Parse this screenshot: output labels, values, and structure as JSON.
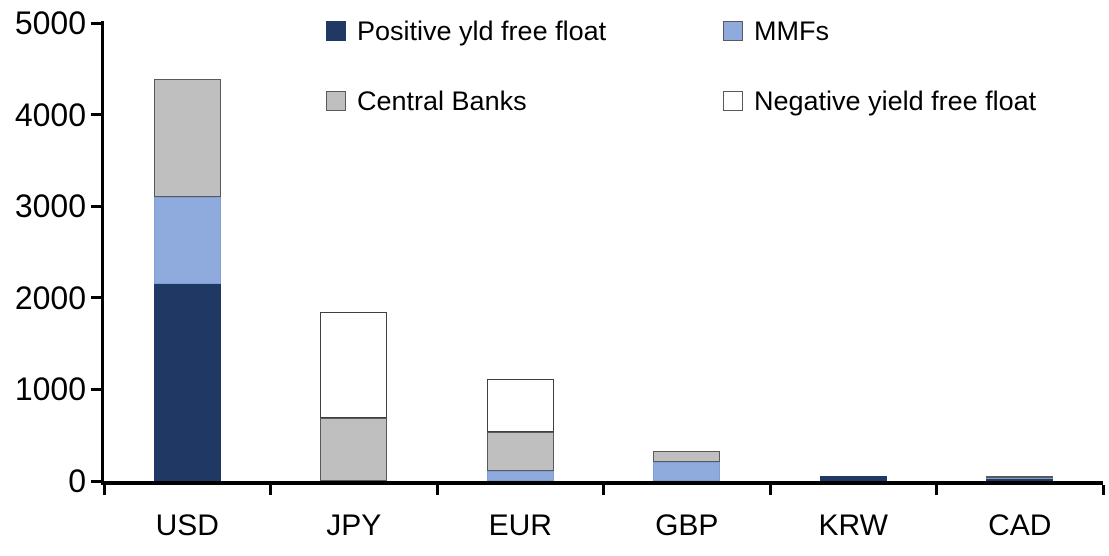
{
  "chart_data": {
    "type": "bar",
    "subtype": "stacked",
    "title": "",
    "xlabel": "",
    "ylabel": "",
    "categories": [
      "USD",
      "JPY",
      "EUR",
      "GBP",
      "KRW",
      "CAD"
    ],
    "series": [
      {
        "name": "Positive yld free float",
        "color": "#1F3864",
        "border_color": "#1F3864",
        "values": [
          2150,
          0,
          0,
          0,
          50,
          20
        ]
      },
      {
        "name": "MMFs",
        "color": "#8FAADC",
        "border_color": "#7E9FD0",
        "values": [
          950,
          0,
          110,
          210,
          0,
          15
        ]
      },
      {
        "name": "Central Banks",
        "color": "#BFBFBF",
        "border_color": "#595959",
        "values": [
          1290,
          690,
          430,
          120,
          0,
          25
        ]
      },
      {
        "name": "Negative yield free float",
        "color": "#FFFFFF",
        "border_color": "#404040",
        "values": [
          0,
          1150,
          570,
          0,
          0,
          0
        ]
      }
    ],
    "totals": [
      4390,
      1840,
      1110,
      330,
      50,
      60
    ],
    "ylim": [
      0,
      5000
    ],
    "yticks": [
      0,
      1000,
      2000,
      3000,
      4000,
      5000
    ],
    "legend_position": "top",
    "legend_columns": 2,
    "grid": false,
    "axis_color": "#000000",
    "text_color": "#000000",
    "background_color": "#FFFFFF"
  }
}
